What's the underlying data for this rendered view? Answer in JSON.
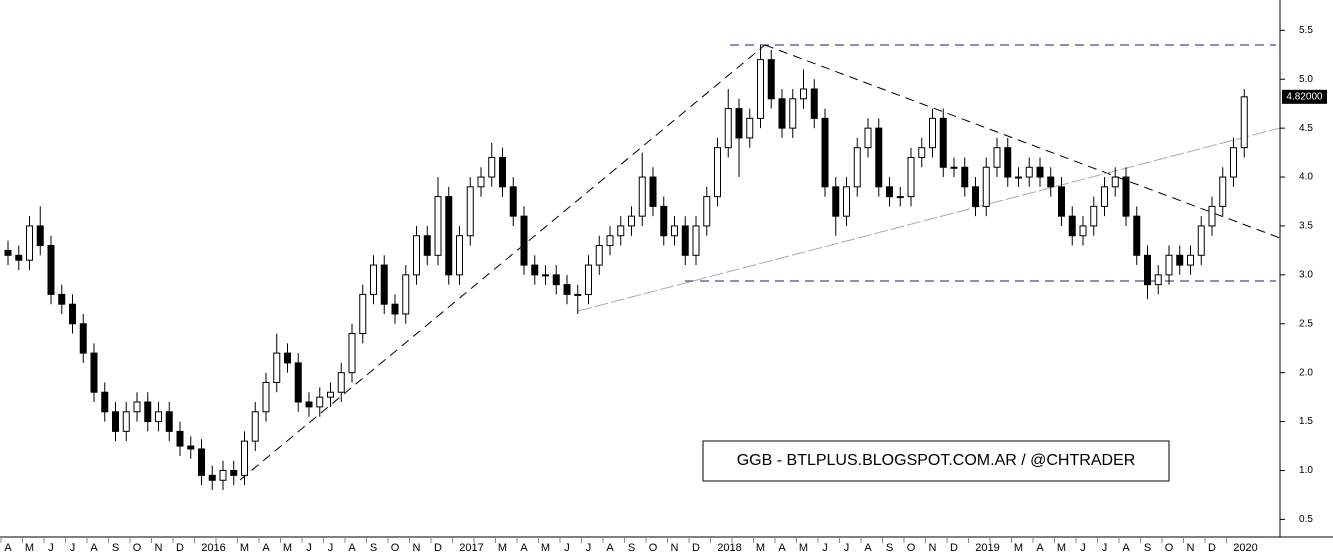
{
  "chart_data": {
    "type": "candlestick",
    "categories": [
      "A",
      null,
      "M",
      null,
      "J",
      null,
      "J",
      null,
      "A",
      null,
      "S",
      null,
      "O",
      null,
      "N",
      null,
      "D",
      null,
      "2016",
      null,
      null,
      null,
      "M",
      null,
      "A",
      null,
      "M",
      null,
      "J",
      null,
      "J",
      null,
      "A",
      null,
      "S",
      null,
      "O",
      null,
      "N",
      null,
      "D",
      null,
      "2017",
      null,
      null,
      null,
      "M",
      null,
      "A",
      null,
      "M",
      null,
      "J",
      null,
      "J",
      null,
      "A",
      null,
      "S",
      null,
      "O",
      null,
      "N",
      null,
      "D",
      null,
      "2018",
      null,
      null,
      null,
      "M",
      null,
      "A",
      null,
      "M",
      null,
      "J",
      null,
      "J",
      null,
      "A",
      null,
      "S",
      null,
      "O",
      null,
      "N",
      null,
      "D",
      null,
      "2019",
      null,
      null,
      null,
      "M",
      null,
      "A",
      null,
      "M",
      null,
      "J",
      null,
      "J",
      null,
      "A",
      null,
      "S",
      null,
      "O",
      null,
      "N",
      null,
      "D",
      null,
      "2020",
      null
    ],
    "open": [
      3.25,
      3.2,
      3.15,
      3.5,
      3.3,
      2.8,
      2.7,
      2.5,
      2.2,
      1.8,
      1.6,
      1.4,
      1.6,
      1.7,
      1.5,
      1.6,
      1.4,
      1.25,
      1.22,
      0.95,
      0.9,
      1.0,
      0.95,
      1.3,
      1.6,
      1.9,
      2.2,
      2.1,
      1.7,
      1.65,
      1.75,
      1.8,
      2.0,
      2.4,
      2.8,
      3.1,
      2.7,
      2.6,
      3.0,
      3.4,
      3.2,
      3.8,
      3.0,
      3.4,
      3.9,
      4.0,
      4.2,
      3.9,
      3.6,
      3.1,
      3.0,
      3.0,
      2.9,
      2.8,
      2.8,
      3.1,
      3.3,
      3.4,
      3.5,
      3.6,
      4.0,
      3.7,
      3.4,
      3.5,
      3.2,
      3.5,
      3.8,
      4.3,
      4.7,
      4.4,
      4.6,
      5.2,
      4.8,
      4.5,
      4.8,
      4.9,
      4.6,
      3.9,
      3.6,
      3.9,
      4.3,
      4.5,
      3.9,
      3.8,
      3.8,
      4.2,
      4.3,
      4.6,
      4.1,
      4.1,
      3.9,
      3.7,
      4.1,
      4.3,
      4.0,
      4.0,
      4.1,
      4.0,
      3.9,
      3.6,
      3.4,
      3.5,
      3.7,
      3.9,
      4.0,
      3.6,
      3.2,
      2.9,
      3.0,
      3.2,
      3.1,
      3.2,
      3.5,
      3.7,
      4.0,
      4.3
    ],
    "high": [
      3.35,
      3.3,
      3.6,
      3.7,
      3.4,
      2.9,
      2.8,
      2.6,
      2.3,
      1.9,
      1.7,
      1.7,
      1.8,
      1.8,
      1.7,
      1.7,
      1.5,
      1.35,
      1.32,
      1.05,
      1.1,
      1.1,
      1.4,
      1.7,
      2.0,
      2.4,
      2.3,
      2.2,
      1.8,
      1.85,
      1.9,
      2.1,
      2.5,
      2.9,
      3.2,
      3.2,
      2.8,
      3.1,
      3.5,
      3.5,
      4.0,
      3.9,
      3.5,
      4.0,
      4.1,
      4.35,
      4.3,
      4.0,
      3.7,
      3.2,
      3.1,
      3.1,
      3.0,
      2.9,
      3.2,
      3.4,
      3.5,
      3.6,
      3.7,
      4.25,
      4.1,
      3.8,
      3.6,
      3.6,
      3.6,
      3.9,
      4.4,
      4.9,
      4.8,
      4.7,
      5.35,
      5.3,
      4.9,
      4.9,
      5.1,
      5.0,
      4.7,
      4.0,
      4.0,
      4.4,
      4.6,
      4.6,
      4.0,
      3.9,
      4.3,
      4.4,
      4.7,
      4.7,
      4.2,
      4.2,
      4.0,
      4.2,
      4.4,
      4.4,
      4.1,
      4.2,
      4.2,
      4.1,
      4.0,
      3.7,
      3.6,
      3.8,
      4.0,
      4.1,
      4.1,
      3.7,
      3.3,
      3.1,
      3.3,
      3.3,
      3.3,
      3.6,
      3.8,
      4.1,
      4.4,
      4.9
    ],
    "low": [
      3.1,
      3.05,
      3.05,
      3.2,
      2.7,
      2.6,
      2.4,
      2.1,
      1.7,
      1.5,
      1.3,
      1.3,
      1.5,
      1.4,
      1.4,
      1.3,
      1.15,
      1.12,
      0.85,
      0.8,
      0.8,
      0.85,
      0.85,
      1.2,
      1.5,
      1.8,
      2.0,
      1.6,
      1.55,
      1.55,
      1.65,
      1.7,
      1.9,
      2.3,
      2.7,
      2.6,
      2.5,
      2.5,
      2.9,
      3.1,
      3.1,
      2.9,
      2.9,
      3.3,
      3.8,
      3.9,
      3.8,
      3.5,
      3.0,
      2.9,
      2.9,
      2.8,
      2.7,
      2.6,
      2.7,
      3.0,
      3.2,
      3.3,
      3.4,
      3.5,
      3.6,
      3.3,
      3.3,
      3.1,
      3.1,
      3.4,
      3.7,
      4.2,
      4.0,
      4.3,
      4.5,
      4.7,
      4.4,
      4.4,
      4.7,
      4.5,
      3.8,
      3.4,
      3.5,
      3.8,
      4.2,
      3.8,
      3.7,
      3.7,
      3.7,
      4.1,
      4.2,
      4.0,
      4.0,
      3.8,
      3.6,
      3.6,
      4.0,
      3.9,
      3.9,
      3.9,
      3.9,
      3.8,
      3.5,
      3.3,
      3.3,
      3.4,
      3.6,
      3.8,
      3.5,
      3.1,
      2.75,
      2.8,
      2.9,
      3.0,
      3.0,
      3.1,
      3.4,
      3.6,
      3.9,
      4.2
    ],
    "close": [
      3.2,
      3.15,
      3.5,
      3.3,
      2.8,
      2.7,
      2.5,
      2.2,
      1.8,
      1.6,
      1.4,
      1.6,
      1.7,
      1.5,
      1.6,
      1.4,
      1.25,
      1.22,
      0.95,
      0.9,
      1.0,
      0.95,
      1.3,
      1.6,
      1.9,
      2.2,
      2.1,
      1.7,
      1.65,
      1.75,
      1.8,
      2.0,
      2.4,
      2.8,
      3.1,
      2.7,
      2.6,
      3.0,
      3.4,
      3.2,
      3.8,
      3.0,
      3.4,
      3.9,
      4.0,
      4.2,
      3.9,
      3.6,
      3.1,
      3.0,
      3.0,
      2.9,
      2.8,
      2.8,
      3.1,
      3.3,
      3.4,
      3.5,
      3.6,
      4.0,
      3.7,
      3.4,
      3.5,
      3.2,
      3.5,
      3.8,
      4.3,
      4.7,
      4.4,
      4.6,
      5.2,
      4.8,
      4.5,
      4.8,
      4.9,
      4.6,
      3.9,
      3.6,
      3.9,
      4.3,
      4.5,
      3.9,
      3.8,
      3.8,
      4.2,
      4.3,
      4.6,
      4.1,
      4.1,
      3.9,
      3.7,
      4.1,
      4.3,
      4.0,
      4.0,
      4.1,
      4.0,
      3.9,
      3.6,
      3.4,
      3.5,
      3.7,
      3.9,
      4.0,
      3.6,
      3.2,
      2.9,
      3.0,
      3.2,
      3.1,
      3.2,
      3.5,
      3.7,
      4.0,
      4.3,
      4.82
    ],
    "up_color": "#ffffff",
    "down_color": "#000000",
    "ylim": [
      0.32,
      5.81
    ],
    "yticks": [
      0.5,
      {
        "value": 1,
        "label": "1.0"
      },
      1.5,
      {
        "value": 2,
        "label": "2.0"
      },
      2.5,
      {
        "value": 3,
        "label": "3.0"
      },
      3.5,
      {
        "value": 4,
        "label": "4.0"
      },
      4.5,
      {
        "value": 5,
        "label": "5.0"
      },
      5.5
    ],
    "last_price": {
      "value": 4.82,
      "label": "4.82000"
    },
    "annotation": "GGB - BTLPLUS.BLOGSPOT.COM.AR / @CHTRADER"
  }
}
